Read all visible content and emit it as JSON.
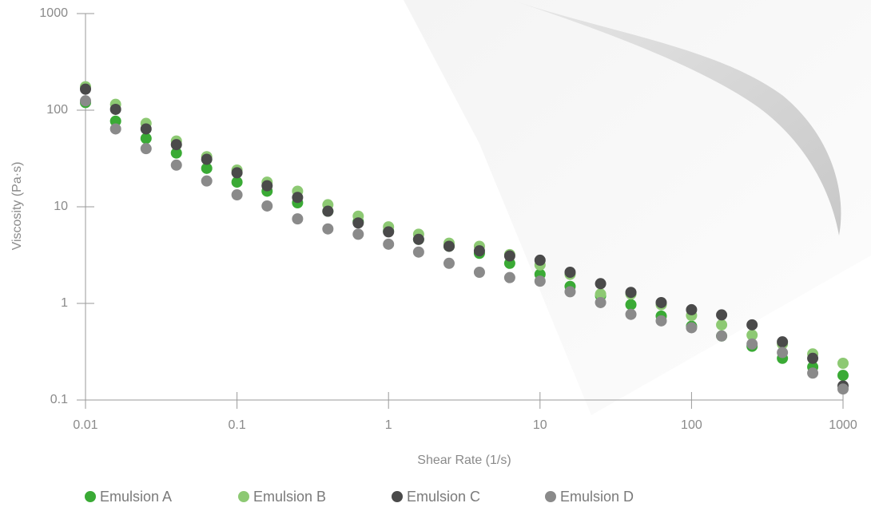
{
  "chart_data": {
    "type": "scatter",
    "x_label": "Shear Rate (1/s)",
    "y_label": "Viscosity (Pa·s)",
    "x_scale": "log",
    "y_scale": "log",
    "xlim": [
      0.01,
      1000
    ],
    "ylim": [
      0.1,
      1000
    ],
    "xticks": [
      0.01,
      0.1,
      1,
      10,
      100,
      1000
    ],
    "yticks": [
      0.1,
      1,
      10,
      100,
      1000
    ],
    "x": [
      0.01,
      0.0158,
      0.0251,
      0.0398,
      0.0631,
      0.1,
      0.158,
      0.251,
      0.398,
      0.631,
      1,
      1.58,
      2.51,
      3.98,
      6.31,
      10,
      15.8,
      25.1,
      39.8,
      63.1,
      100,
      158,
      251,
      398,
      631,
      1000
    ],
    "series": [
      {
        "name": "Emulsion A",
        "color": "#3aaa35",
        "values": [
          120,
          77,
          51,
          36,
          25,
          18,
          14.5,
          11,
          9,
          7,
          5.6,
          4.6,
          3.9,
          3.3,
          2.6,
          2.0,
          1.5,
          1.2,
          0.97,
          0.74,
          0.58,
          0.46,
          0.36,
          0.27,
          0.22,
          0.18
        ]
      },
      {
        "name": "Emulsion B",
        "color": "#8dc973",
        "values": [
          175,
          115,
          73,
          48,
          33,
          24,
          18,
          14.5,
          10.5,
          8,
          6.2,
          5.2,
          4.2,
          3.9,
          3.2,
          2.5,
          2.0,
          1.25,
          1.25,
          0.97,
          0.75,
          0.6,
          0.47,
          0.38,
          0.3,
          0.24
        ]
      },
      {
        "name": "Emulsion C",
        "color": "#4a4a4a",
        "values": [
          165,
          102,
          64,
          44,
          31,
          22.5,
          16.5,
          12.5,
          9,
          6.8,
          5.5,
          4.6,
          3.9,
          3.5,
          3.1,
          2.8,
          2.1,
          1.6,
          1.3,
          1.02,
          0.86,
          0.76,
          0.6,
          0.4,
          0.27,
          0.14
        ]
      },
      {
        "name": "Emulsion D",
        "color": "#8a8a8a",
        "values": [
          125,
          64,
          40,
          27,
          18.5,
          13.3,
          10.2,
          7.5,
          5.9,
          5.2,
          4.1,
          3.4,
          2.6,
          2.1,
          1.85,
          1.7,
          1.32,
          1.02,
          0.77,
          0.66,
          0.56,
          0.46,
          0.38,
          0.31,
          0.19,
          0.13
        ]
      }
    ]
  }
}
